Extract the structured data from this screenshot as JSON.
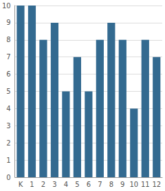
{
  "chart_data": {
    "type": "bar",
    "categories": [
      "K",
      "1",
      "2",
      "3",
      "4",
      "5",
      "6",
      "7",
      "8",
      "9",
      "10",
      "11",
      "12"
    ],
    "values": [
      10,
      10,
      8,
      9,
      5,
      7,
      5,
      8,
      9,
      8,
      4,
      8,
      7
    ],
    "color": "#336a90",
    "ylim": [
      0,
      10
    ],
    "yticks": [
      0,
      1,
      2,
      3,
      4,
      5,
      6,
      7,
      8,
      9,
      10
    ],
    "grid": true
  }
}
